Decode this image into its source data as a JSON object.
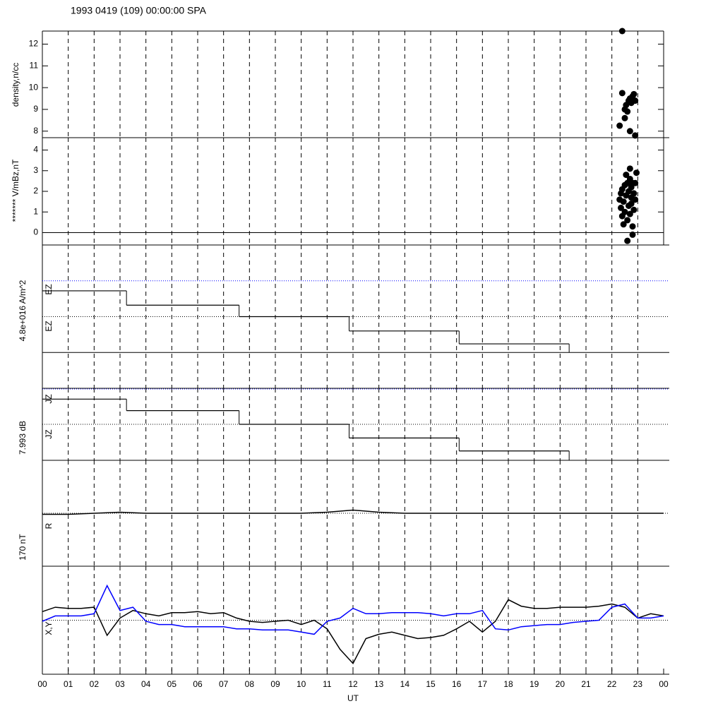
{
  "chart_data": {
    "title": "1993 0419 (109) 00:00:00 SPA",
    "xlabel": "UT",
    "xlim": [
      0,
      24
    ],
    "xticks": [
      {
        "value": 0,
        "label": "00"
      },
      {
        "value": 1,
        "label": "01"
      },
      {
        "value": 2,
        "label": "02"
      },
      {
        "value": 3,
        "label": "03"
      },
      {
        "value": 4,
        "label": "04"
      },
      {
        "value": 5,
        "label": "05"
      },
      {
        "value": 6,
        "label": "06"
      },
      {
        "value": 7,
        "label": "07"
      },
      {
        "value": 8,
        "label": "08"
      },
      {
        "value": 9,
        "label": "09"
      },
      {
        "value": 10,
        "label": "10"
      },
      {
        "value": 11,
        "label": "11"
      },
      {
        "value": 12,
        "label": "12"
      },
      {
        "value": 13,
        "label": "13"
      },
      {
        "value": 14,
        "label": "14"
      },
      {
        "value": 15,
        "label": "15"
      },
      {
        "value": 16,
        "label": "16"
      },
      {
        "value": 17,
        "label": "17"
      },
      {
        "value": 18,
        "label": "18"
      },
      {
        "value": 19,
        "label": "19"
      },
      {
        "value": 20,
        "label": "20"
      },
      {
        "value": 21,
        "label": "21"
      },
      {
        "value": 22,
        "label": "22"
      },
      {
        "value": 23,
        "label": "23"
      },
      {
        "value": 24,
        "label": "00"
      }
    ],
    "panels": [
      {
        "type": "scatter",
        "ylabel": "density,n/cc",
        "ylim": [
          7.7,
          12.6
        ],
        "yticks": [
          8,
          9,
          10,
          11,
          12
        ],
        "color": "#000000",
        "x": [
          22.4,
          22.4,
          22.3,
          22.5,
          22.55,
          22.6,
          22.65,
          22.7,
          22.75,
          22.8,
          22.85,
          22.9,
          22.7,
          22.9,
          22.5
        ],
        "values": [
          12.6,
          9.75,
          8.25,
          9.0,
          9.2,
          8.9,
          9.4,
          9.5,
          9.3,
          9.6,
          9.7,
          9.4,
          8.0,
          7.8,
          8.6
        ]
      },
      {
        "type": "scatter",
        "ylabel": "******* V/mBz,nT",
        "ylim": [
          -0.6,
          4.6
        ],
        "yticks": [
          0,
          1,
          2,
          3,
          4
        ],
        "color": "#000000",
        "hline": 0,
        "x": [
          22.3,
          22.35,
          22.4,
          22.4,
          22.45,
          22.5,
          22.5,
          22.55,
          22.6,
          22.6,
          22.65,
          22.65,
          22.7,
          22.7,
          22.75,
          22.75,
          22.8,
          22.8,
          22.85,
          22.85,
          22.9,
          22.9,
          22.45,
          22.55,
          22.7,
          22.8,
          22.95,
          22.35,
          22.6,
          22.75
        ],
        "values": [
          1.6,
          1.2,
          0.8,
          2.1,
          1.5,
          2.3,
          1.0,
          1.8,
          2.4,
          0.6,
          2.0,
          1.3,
          2.6,
          0.9,
          1.7,
          2.2,
          2.4,
          0.3,
          1.9,
          1.1,
          2.4,
          1.6,
          0.4,
          2.8,
          3.1,
          -0.1,
          2.9,
          1.9,
          -0.4,
          1.4
        ]
      },
      {
        "type": "step",
        "ylabel": "4.8e+016 A/m^2",
        "labels": [
          "EZ",
          "EZ"
        ],
        "ylim": [
          0,
          1
        ],
        "color": "#000000",
        "hlines": [
          {
            "value": 0.75,
            "color": "#0000ff",
            "dash": true
          },
          {
            "value": 0.5,
            "color": "#000000",
            "dash": true
          },
          {
            "value": 0.25,
            "color": "#000000",
            "dash": false
          }
        ],
        "x": [
          0,
          3.25,
          7.6,
          11.85,
          16.1,
          20.35
        ],
        "values": [
          0.68,
          0.58,
          0.5,
          0.4,
          0.31,
          0.25
        ]
      },
      {
        "type": "step",
        "ylabel": "7.993 dB",
        "labels": [
          "JZ",
          "JZ"
        ],
        "ylim": [
          0,
          1
        ],
        "color": "#000000",
        "hlines": [
          {
            "value": 0.99,
            "color": "#0000ff",
            "dash": true
          },
          {
            "value": 0.5,
            "color": "#000000",
            "dash": true
          }
        ],
        "x": [
          0,
          3.25,
          7.6,
          11.85,
          16.1,
          20.35
        ],
        "values": [
          0.85,
          0.69,
          0.5,
          0.31,
          0.13,
          0
        ]
      },
      {
        "type": "line",
        "ylabel": "170 nT",
        "labels": [
          "R"
        ],
        "ylim": [
          0,
          1
        ],
        "hlines": [
          {
            "value": 0.5,
            "color": "#000000",
            "dash": true
          }
        ],
        "x": [
          0,
          1,
          2,
          3,
          4,
          5,
          6,
          7,
          8,
          9,
          10,
          11,
          12,
          13,
          14,
          15,
          16,
          17,
          18,
          19,
          20,
          21,
          22,
          23,
          24
        ],
        "series": [
          {
            "name": "R",
            "color": "#000000",
            "values": [
              0.49,
              0.49,
              0.5,
              0.51,
              0.5,
              0.5,
              0.5,
              0.5,
              0.5,
              0.5,
              0.5,
              0.51,
              0.53,
              0.51,
              0.5,
              0.5,
              0.5,
              0.5,
              0.5,
              0.5,
              0.5,
              0.5,
              0.5,
              0.5,
              0.5
            ]
          }
        ]
      },
      {
        "type": "line",
        "labels": [
          "X,Y"
        ],
        "ylim": [
          0,
          1
        ],
        "hlines": [
          {
            "value": 0.5,
            "color": "#000000",
            "dash": true
          }
        ],
        "x": [
          0,
          0.5,
          1,
          1.5,
          2,
          2.5,
          3,
          3.5,
          4,
          4.5,
          5,
          5.5,
          6,
          6.5,
          7,
          7.5,
          8,
          8.5,
          9,
          9.5,
          10,
          10.5,
          11,
          11.5,
          12,
          12.5,
          13,
          13.5,
          14,
          14.5,
          15,
          15.5,
          16,
          16.5,
          17,
          17.5,
          18,
          18.5,
          19,
          19.5,
          20,
          20.5,
          21,
          21.5,
          22,
          22.5,
          23,
          23.5,
          24
        ],
        "series": [
          {
            "name": "X",
            "color": "#000000",
            "values": [
              0.58,
              0.62,
              0.61,
              0.61,
              0.62,
              0.36,
              0.52,
              0.59,
              0.56,
              0.54,
              0.57,
              0.57,
              0.58,
              0.56,
              0.57,
              0.52,
              0.49,
              0.48,
              0.49,
              0.5,
              0.46,
              0.5,
              0.42,
              0.23,
              0.1,
              0.33,
              0.37,
              0.39,
              0.36,
              0.33,
              0.34,
              0.36,
              0.42,
              0.49,
              0.39,
              0.49,
              0.69,
              0.63,
              0.61,
              0.61,
              0.62,
              0.62,
              0.62,
              0.63,
              0.65,
              0.62,
              0.52,
              0.56,
              0.54
            ]
          },
          {
            "name": "Y",
            "color": "#0000ff",
            "values": [
              0.49,
              0.54,
              0.54,
              0.54,
              0.56,
              0.82,
              0.59,
              0.62,
              0.49,
              0.46,
              0.46,
              0.44,
              0.44,
              0.44,
              0.44,
              0.42,
              0.42,
              0.41,
              0.41,
              0.41,
              0.39,
              0.37,
              0.49,
              0.52,
              0.61,
              0.56,
              0.56,
              0.57,
              0.57,
              0.57,
              0.56,
              0.54,
              0.56,
              0.56,
              0.59,
              0.42,
              0.41,
              0.44,
              0.45,
              0.46,
              0.46,
              0.48,
              0.49,
              0.5,
              0.62,
              0.65,
              0.52,
              0.52,
              0.54
            ]
          }
        ]
      }
    ]
  }
}
